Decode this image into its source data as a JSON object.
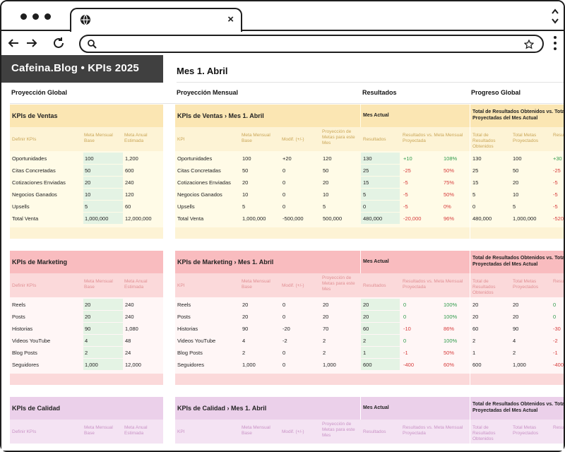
{
  "browser": {
    "tab_icon": "globe-icon"
  },
  "header": {
    "brand": "Cafeina.Blog • KPIs 2025",
    "month": "Mes 1. Abril"
  },
  "sections": {
    "global": "Proyección Global",
    "monthly": "Proyección Mensual",
    "results": "Resultados",
    "progress": "Progreso Global"
  },
  "common": {
    "col_definir": "Definir KPIs",
    "col_meta_base": "Meta Mensual Base",
    "col_meta_anual": "Meta Anual Estimada",
    "col_kpi": "KPI",
    "col_modif": "Modif. (+/-)",
    "col_proy": "Proyección de Metas para este Mes",
    "mes_actual": "Mes Actual",
    "col_resultados": "Resultados",
    "col_vs": "Resultados vs. Meta Mensual Proyectada",
    "col_total_obt": "Total de Resultados Obtenidos",
    "col_total_metas": "Total Metas Proyectados",
    "col_resu_trunc": "Resu"
  },
  "ventas": {
    "title": "KPIs de Ventas",
    "title_month": "KPIs de Ventas › Mes 1. Abril",
    "total_header": "Total de Resultados Obtenidos vs. Total de Metas Proyectadas del Mes Actual",
    "rows": [
      {
        "kpi": "Oportunidades",
        "base": "100",
        "anual": "1,200",
        "modif": "+20",
        "proy": "120",
        "res": "130",
        "diff": "+10",
        "pct": "108%",
        "tot": "130",
        "tmeta": "100",
        "trunc": "+30",
        "diff_pos": true,
        "trunc_pos": true
      },
      {
        "kpi": "Citas Concretadas",
        "base": "50",
        "anual": "600",
        "modif": "0",
        "proy": "50",
        "res": "25",
        "diff": "-25",
        "pct": "50%",
        "tot": "25",
        "tmeta": "50",
        "trunc": "-25",
        "diff_pos": false,
        "trunc_pos": false
      },
      {
        "kpi": "Cotizaciones Enviadas",
        "base": "20",
        "anual": "240",
        "modif": "0",
        "proy": "20",
        "res": "15",
        "diff": "-5",
        "pct": "75%",
        "tot": "15",
        "tmeta": "20",
        "trunc": "-5",
        "diff_pos": false,
        "trunc_pos": false
      },
      {
        "kpi": "Negocios Ganados",
        "base": "10",
        "anual": "120",
        "modif": "0",
        "proy": "10",
        "res": "5",
        "diff": "-5",
        "pct": "50%",
        "tot": "5",
        "tmeta": "10",
        "trunc": "-5",
        "diff_pos": false,
        "trunc_pos": false
      },
      {
        "kpi": "Upsells",
        "base": "5",
        "anual": "60",
        "modif": "0",
        "proy": "5",
        "res": "0",
        "diff": "-5",
        "pct": "0%",
        "tot": "0",
        "tmeta": "5",
        "trunc": "-5",
        "diff_pos": false,
        "trunc_pos": false
      },
      {
        "kpi": "Total Venta",
        "base": "1,000,000",
        "anual": "12,000,000",
        "modif": "-500,000",
        "proy": "500,000",
        "res": "480,000",
        "diff": "-20,000",
        "pct": "96%",
        "tot": "480,000",
        "tmeta": "1,000,000",
        "trunc": "-520",
        "diff_pos": false,
        "trunc_pos": false
      }
    ]
  },
  "marketing": {
    "title": "KPIs de Marketing",
    "title_month": "KPIs de Marketing › Mes 1. Abril",
    "total_header": "Total de Resultados Obtenidos vs. Total de Metas Proyectadas del Mes Actual",
    "rows": [
      {
        "kpi": "Reels",
        "base": "20",
        "anual": "240",
        "modif": "0",
        "proy": "20",
        "res": "20",
        "diff": "0",
        "pct": "100%",
        "tot": "20",
        "tmeta": "20",
        "trunc": "0",
        "diff_pos": true,
        "trunc_pos": true
      },
      {
        "kpi": "Posts",
        "base": "20",
        "anual": "240",
        "modif": "0",
        "proy": "20",
        "res": "20",
        "diff": "0",
        "pct": "100%",
        "tot": "20",
        "tmeta": "20",
        "trunc": "0",
        "diff_pos": true,
        "trunc_pos": true
      },
      {
        "kpi": "Historias",
        "base": "90",
        "anual": "1,080",
        "modif": "-20",
        "proy": "70",
        "res": "60",
        "diff": "-10",
        "pct": "86%",
        "tot": "60",
        "tmeta": "90",
        "trunc": "-30",
        "diff_pos": false,
        "trunc_pos": false
      },
      {
        "kpi": "Videos YouTube",
        "base": "4",
        "anual": "48",
        "modif": "-2",
        "proy": "2",
        "res": "2",
        "diff": "0",
        "pct": "100%",
        "tot": "2",
        "tmeta": "4",
        "trunc": "-2",
        "diff_pos": true,
        "trunc_pos": false
      },
      {
        "kpi": "Blog Posts",
        "base": "2",
        "anual": "24",
        "modif": "0",
        "proy": "2",
        "res": "1",
        "diff": "-1",
        "pct": "50%",
        "tot": "1",
        "tmeta": "2",
        "trunc": "-1",
        "diff_pos": false,
        "trunc_pos": false
      },
      {
        "kpi": "Seguidores",
        "base": "1,000",
        "anual": "12,000",
        "modif": "0",
        "proy": "1,000",
        "res": "600",
        "diff": "-400",
        "pct": "60%",
        "tot": "600",
        "tmeta": "1,000",
        "trunc": "-400",
        "diff_pos": false,
        "trunc_pos": false
      }
    ]
  },
  "calidad": {
    "title": "KPIs de Calidad",
    "title_month": "KPIs de Calidad › Mes 1. Abril",
    "total_header": "Total de Resultados Obtenidos vs. Total de Metas Proyectadas del Mes Actual",
    "rows": []
  },
  "colors": {
    "ventas_band": "#fbe6b3",
    "ventas_sub": "#fdf3d5",
    "ventas_row": "#fffbe7",
    "ventas_sub_text": "#caa657",
    "marketing_band": "#f9bcbf",
    "marketing_sub": "#fbd9da",
    "marketing_row": "#fff6f6",
    "marketing_sub_text": "#e08f93",
    "calidad_band": "#ebd0ea",
    "calidad_sub": "#f4e3f3",
    "calidad_sub_text": "#c993c6",
    "green_cell": "#e4f3e4"
  }
}
